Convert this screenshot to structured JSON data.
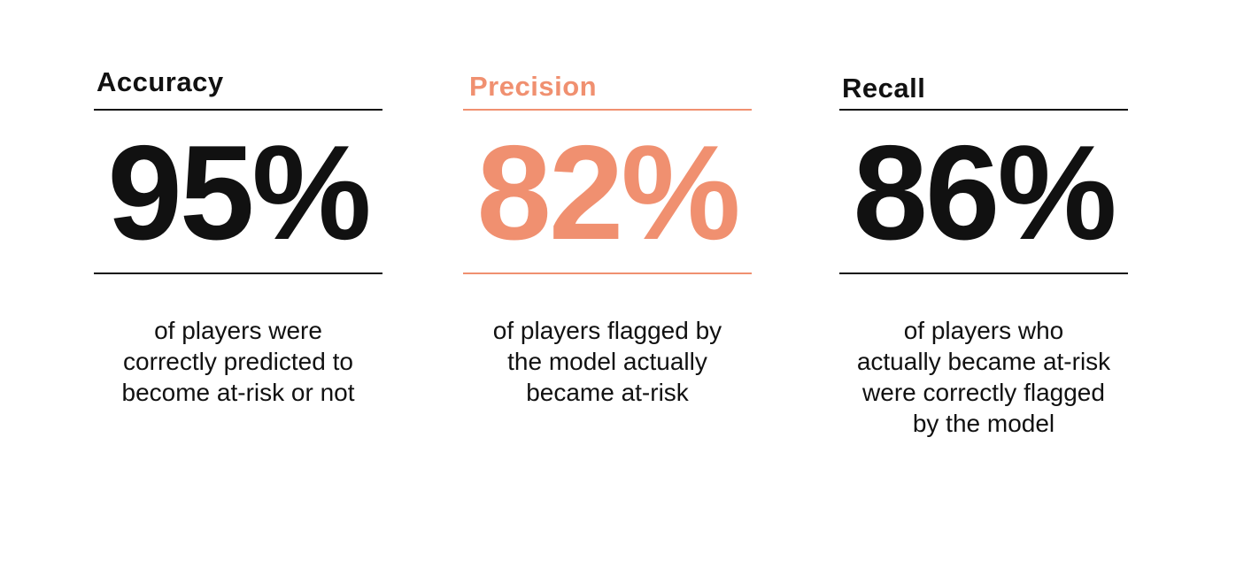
{
  "colors": {
    "dark": "#111111",
    "accent": "#F09070",
    "background": "#FFFFFF"
  },
  "metrics": [
    {
      "title": "Accuracy",
      "value": "95%",
      "description": "of players were\ncorrectly predicted to\nbecome at-risk or not"
    },
    {
      "title": "Precision",
      "value": "82%",
      "description": "of players flagged by\nthe model actually\nbecame at-risk"
    },
    {
      "title": "Recall",
      "value": "86%",
      "description": "of players who\nactually became at-risk\nwere correctly flagged\nby the model"
    }
  ]
}
